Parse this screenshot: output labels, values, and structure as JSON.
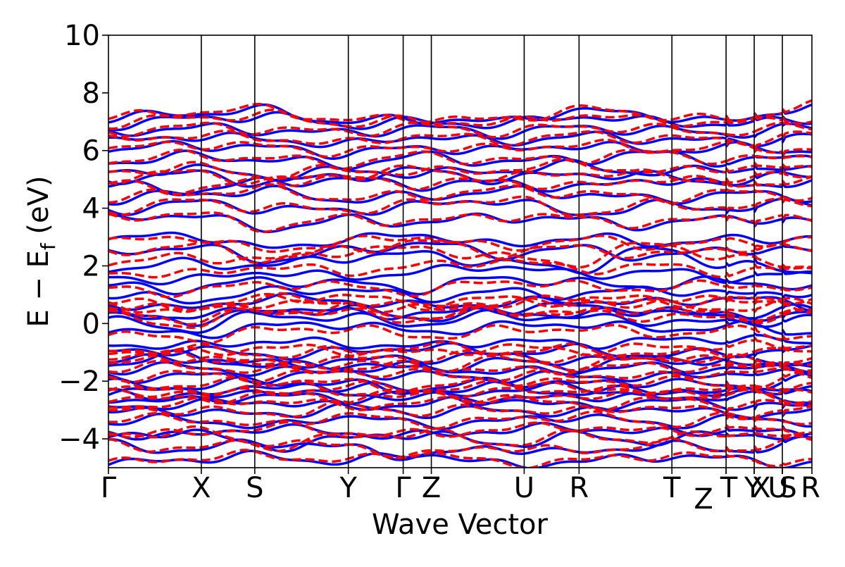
{
  "chart_data": {
    "type": "line",
    "title": "",
    "xlabel": "Wave Vector",
    "ylabel": "E − E_f (eV)",
    "ylabel_parts": {
      "main": "E − E",
      "sub": "f",
      "tail": " (eV)"
    },
    "ylim": [
      -5,
      10
    ],
    "yticks": [
      -4,
      -2,
      0,
      2,
      4,
      6,
      8,
      10
    ],
    "ytick_labels": [
      "−4",
      "−2",
      "0",
      "2",
      "4",
      "6",
      "8",
      "10"
    ],
    "xlim": [
      0,
      1
    ],
    "high_symmetry_points": [
      {
        "label": "Γ",
        "x": 0.0
      },
      {
        "label": "X",
        "x": 0.132
      },
      {
        "label": "S",
        "x": 0.208
      },
      {
        "label": "Y",
        "x": 0.341
      },
      {
        "label": "Γ",
        "x": 0.419
      },
      {
        "label": "Z",
        "x": 0.459
      },
      {
        "label": "U",
        "x": 0.591
      },
      {
        "label": "R",
        "x": 0.669
      },
      {
        "label": "T",
        "x": 0.801
      },
      {
        "label": "Z",
        "x": 0.878
      },
      {
        "label": "T",
        "x": 0.878
      },
      {
        "label": "Y",
        "x": 0.918
      },
      {
        "label": "X",
        "x": 0.918
      },
      {
        "label": "U",
        "x": 0.958
      },
      {
        "label": "S",
        "x": 0.958
      },
      {
        "label": "R",
        "x": 1.0
      }
    ],
    "band_break_points": [
      0.878,
      0.918,
      0.958
    ],
    "series": [
      {
        "style": "solid",
        "color": "#0000ff",
        "width": 3.5
      },
      {
        "style": "dashed",
        "color": "#ff0000",
        "width": 3.5
      }
    ],
    "bands_per_series": 40,
    "band_energy_anchors": [
      [
        -4.9,
        -4.7,
        -4.6,
        -4.8,
        -4.5,
        -4.9,
        -4.8,
        -4.6,
        -4.7,
        -4.9
      ],
      [
        -4.2,
        -4.4,
        -4.1,
        -4.3,
        -4.6,
        -4.3,
        -4.5,
        -4.2,
        -4.4,
        -4.1
      ],
      [
        -3.8,
        -3.9,
        -3.6,
        -3.8,
        -3.9,
        -3.7,
        -3.6,
        -3.8,
        -3.7,
        -3.9
      ],
      [
        -3.4,
        -3.3,
        -3.6,
        -3.2,
        -3.5,
        -3.4,
        -3.2,
        -3.5,
        -3.3,
        -3.4
      ],
      [
        -3.1,
        -3.0,
        -3.2,
        -2.9,
        -3.1,
        -3.0,
        -3.1,
        -2.9,
        -3.2,
        -3.0
      ],
      [
        -2.9,
        -2.8,
        -2.7,
        -2.9,
        -2.8,
        -2.6,
        -2.9,
        -2.7,
        -2.8,
        -2.9
      ],
      [
        -2.6,
        -2.7,
        -2.5,
        -2.6,
        -2.4,
        -2.7,
        -2.5,
        -2.6,
        -2.5,
        -2.7
      ],
      [
        -2.4,
        -2.3,
        -2.5,
        -2.2,
        -2.3,
        -2.2,
        -2.4,
        -2.3,
        -2.4,
        -2.2
      ],
      [
        -2.1,
        -2.2,
        -2.0,
        -2.1,
        -2.3,
        -2.0,
        -2.1,
        -2.0,
        -2.2,
        -1.9
      ],
      [
        -1.9,
        -1.8,
        -1.9,
        -1.7,
        -1.8,
        -1.9,
        -1.8,
        -1.9,
        -1.7,
        -1.8
      ],
      [
        -1.6,
        -1.5,
        -1.7,
        -1.6,
        -1.5,
        -1.7,
        -1.6,
        -1.5,
        -1.6,
        -1.5
      ],
      [
        -1.3,
        -1.2,
        -1.4,
        -1.3,
        -1.2,
        -1.1,
        -1.3,
        -1.2,
        -1.4,
        -1.3
      ],
      [
        -1.0,
        -0.9,
        -1.1,
        -1.0,
        -0.8,
        -1.0,
        -0.9,
        -1.1,
        -1.0,
        -0.9
      ],
      [
        -0.7,
        -0.8,
        -0.6,
        -0.7,
        -0.8,
        -0.6,
        -0.7,
        -0.6,
        -0.5,
        -0.7
      ],
      [
        -0.2,
        -0.4,
        -0.1,
        0.0,
        -0.3,
        -0.1,
        0.0,
        -0.2,
        -0.1,
        -0.3
      ],
      [
        0.1,
        -0.2,
        0.3,
        0.2,
        0.0,
        0.3,
        0.2,
        0.1,
        0.0,
        0.2
      ],
      [
        0.4,
        0.2,
        0.5,
        0.4,
        0.3,
        0.5,
        0.6,
        0.4,
        0.3,
        0.5
      ],
      [
        0.7,
        0.5,
        0.9,
        0.8,
        0.6,
        0.7,
        0.8,
        0.7,
        0.9,
        0.6
      ],
      [
        1.0,
        0.8,
        1.1,
        1.2,
        0.9,
        1.1,
        1.0,
        1.2,
        1.0,
        1.1
      ],
      [
        1.3,
        1.2,
        1.5,
        1.4,
        1.2,
        1.6,
        1.4,
        1.3,
        1.5,
        1.2
      ],
      [
        1.6,
        1.5,
        1.8,
        1.6,
        1.8,
        2.0,
        1.7,
        1.8,
        1.6,
        1.7
      ],
      [
        1.9,
        2.1,
        2.0,
        2.3,
        2.4,
        2.1,
        1.9,
        2.6,
        2.0,
        1.8
      ],
      [
        2.9,
        3.1,
        2.6,
        2.9,
        3.1,
        2.7,
        3.0,
        2.8,
        2.9,
        3.0
      ],
      [
        3.6,
        3.8,
        3.3,
        3.6,
        3.5,
        3.7,
        3.6,
        3.4,
        3.7,
        3.5
      ],
      [
        3.9,
        4.2,
        4.0,
        3.9,
        4.1,
        4.3,
        3.8,
        4.1,
        4.0,
        4.2
      ],
      [
        4.3,
        4.5,
        4.6,
        4.3,
        4.4,
        4.6,
        4.5,
        4.3,
        4.5,
        4.4
      ],
      [
        4.8,
        4.6,
        4.9,
        5.0,
        4.8,
        4.9,
        4.7,
        5.0,
        4.8,
        4.9
      ],
      [
        5.2,
        5.4,
        5.1,
        5.3,
        5.2,
        5.3,
        5.5,
        5.2,
        5.4,
        5.3
      ],
      [
        5.6,
        5.8,
        5.7,
        5.5,
        5.8,
        5.6,
        5.7,
        5.9,
        5.6,
        5.8
      ],
      [
        6.0,
        6.2,
        6.1,
        5.9,
        6.1,
        6.0,
        6.2,
        6.0,
        6.1,
        6.0
      ],
      [
        6.3,
        6.5,
        6.4,
        6.2,
        6.5,
        6.3,
        6.5,
        6.4,
        6.3,
        6.5
      ],
      [
        6.6,
        6.8,
        6.7,
        6.6,
        6.8,
        6.6,
        6.8,
        6.7,
        6.6,
        6.8
      ],
      [
        6.9,
        7.1,
        7.2,
        6.9,
        7.0,
        6.9,
        7.2,
        7.0,
        6.9,
        7.1
      ],
      [
        7.1,
        7.3,
        7.4,
        7.0,
        7.1,
        7.0,
        7.4,
        7.2,
        7.0,
        7.6
      ],
      [
        -4.0,
        -3.7,
        -4.3,
        -4.0,
        -3.8,
        -4.2,
        -3.9,
        -4.1,
        -3.8,
        -4.0
      ],
      [
        -2.3,
        -2.6,
        -2.1,
        -2.4,
        -2.6,
        -2.3,
        -2.2,
        -2.5,
        -2.3,
        -2.4
      ],
      [
        -1.4,
        -1.1,
        -1.5,
        -1.4,
        -1.6,
        -1.3,
        -1.5,
        -1.2,
        -1.3,
        -1.4
      ],
      [
        0.3,
        0.1,
        0.4,
        0.5,
        0.2,
        0.4,
        0.3,
        0.5,
        0.2,
        0.4
      ],
      [
        2.4,
        2.7,
        2.2,
        2.5,
        2.8,
        2.4,
        2.6,
        2.3,
        2.6,
        2.5
      ],
      [
        5.0,
        5.2,
        4.9,
        5.1,
        5.3,
        5.0,
        5.2,
        5.1,
        4.9,
        5.2
      ]
    ]
  }
}
